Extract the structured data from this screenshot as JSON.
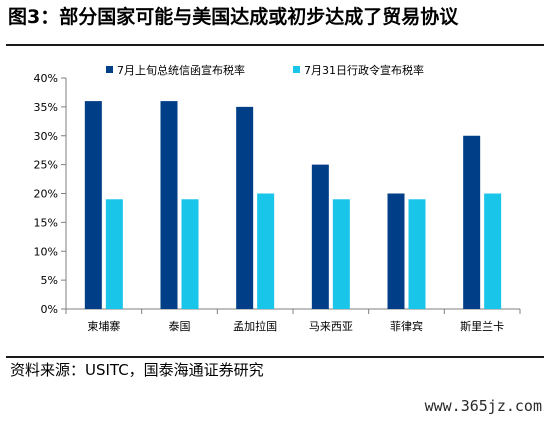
{
  "title": "图3：部分国家可能与美国达成或初步达成了贸易协议",
  "source": "资料来源：USITC，国泰海通证券研究",
  "watermark": "www.365jz.com",
  "colors": {
    "series1": "#003f87",
    "series2": "#19c5e8",
    "axis": "#7f7f7f"
  },
  "chart_data": {
    "type": "bar",
    "categories": [
      "柬埔寨",
      "泰国",
      "孟加拉国",
      "马来西亚",
      "菲律宾",
      "斯里兰卡"
    ],
    "series": [
      {
        "name": "7月上旬总统信函宣布税率",
        "values": [
          36,
          36,
          35,
          25,
          20,
          30
        ]
      },
      {
        "name": "7月31日行政令宣布税率",
        "values": [
          19,
          19,
          20,
          19,
          19,
          20
        ]
      }
    ],
    "y_ticks": [
      "0%",
      "5%",
      "10%",
      "15%",
      "20%",
      "25%",
      "30%",
      "35%",
      "40%"
    ],
    "ylim": [
      0,
      40
    ],
    "y_unit": "%",
    "legend": "top",
    "grid": false
  }
}
